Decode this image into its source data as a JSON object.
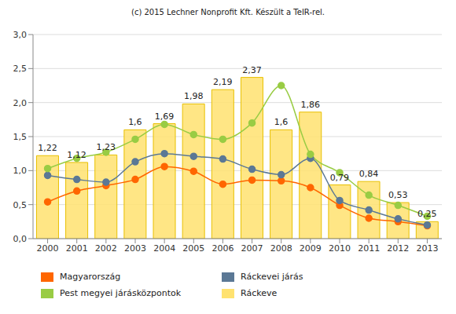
{
  "chart_data": {
    "type": "bar",
    "title": "(c) 2015 Lechner Nonprofit Kft. Készült a TeIR-rel.",
    "categories": [
      "2000",
      "2001",
      "2002",
      "2003",
      "2004",
      "2005",
      "2006",
      "2007",
      "2008",
      "2009",
      "2010",
      "2011",
      "2012",
      "2013"
    ],
    "series": [
      {
        "name": "Magyarország",
        "type": "line",
        "color": "#ff6600",
        "marker": "circle",
        "values": [
          0.54,
          0.7,
          0.78,
          0.87,
          1.06,
          0.99,
          0.8,
          0.86,
          0.85,
          0.75,
          0.49,
          0.3,
          0.25,
          0.19
        ]
      },
      {
        "name": "Ráckevei járás",
        "type": "line",
        "color": "#5b7895",
        "marker": "circle",
        "values": [
          0.93,
          0.87,
          0.83,
          1.13,
          1.25,
          1.21,
          1.17,
          1.02,
          0.94,
          1.18,
          0.56,
          0.42,
          0.29,
          0.2
        ]
      },
      {
        "name": "Pest megyei járásközpontok",
        "type": "line",
        "color": "#99cc44",
        "marker": "circle",
        "values": [
          1.03,
          1.18,
          1.27,
          1.46,
          1.68,
          1.53,
          1.46,
          1.7,
          2.25,
          1.24,
          0.97,
          0.64,
          0.49,
          0.33
        ]
      },
      {
        "name": "Ráckeve",
        "type": "bar",
        "color": "#ffe270",
        "data_labels": true,
        "values": [
          1.22,
          1.12,
          1.23,
          1.6,
          1.69,
          1.98,
          2.19,
          2.37,
          1.6,
          1.86,
          0.79,
          0.84,
          0.53,
          0.25
        ],
        "value_labels": [
          "1,22",
          "1,12",
          "1,23",
          "1,6",
          "1,69",
          "1,98",
          "2,19",
          "2,37",
          "1,6",
          "1,86",
          "0,79",
          "0,84",
          "0,53",
          "0,25"
        ]
      }
    ],
    "ylim": [
      0,
      3
    ],
    "yticks": [
      {
        "value": 0,
        "label": "0,0"
      },
      {
        "value": 0.5,
        "label": "0,5"
      },
      {
        "value": 1,
        "label": "1,0"
      },
      {
        "value": 1.5,
        "label": "1,5"
      },
      {
        "value": 2,
        "label": "2,0"
      },
      {
        "value": 2.5,
        "label": "2,5"
      },
      {
        "value": 3,
        "label": "3,0"
      }
    ],
    "grid": true
  }
}
